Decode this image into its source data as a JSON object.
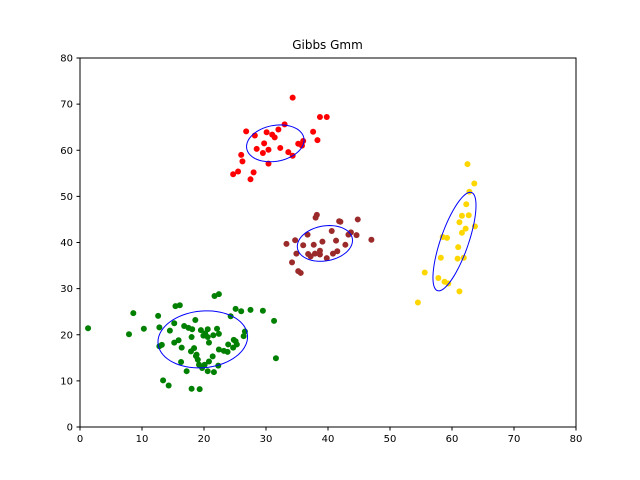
{
  "chart_data": {
    "type": "scatter",
    "title": "Gibbs Gmm",
    "xlabel": "",
    "ylabel": "",
    "xlim": [
      0,
      80
    ],
    "ylim": [
      0,
      80
    ],
    "xticks": [
      0,
      10,
      20,
      30,
      40,
      50,
      60,
      70,
      80
    ],
    "yticks": [
      0,
      10,
      20,
      30,
      40,
      50,
      60,
      70,
      80
    ],
    "grid": false,
    "ellipse_color": "#0000ff",
    "clusters": [
      {
        "color": "#ff0000",
        "ellipse": {
          "cx": 31.5,
          "cy": 61.5,
          "rx": 4.8,
          "ry": 3.8,
          "angle": 25
        },
        "points": [
          [
            34.3,
            71.4
          ],
          [
            28.2,
            63.2
          ],
          [
            33.0,
            65.6
          ],
          [
            26.8,
            64.1
          ],
          [
            38.7,
            67.2
          ],
          [
            39.8,
            67.2
          ],
          [
            37.6,
            64.0
          ],
          [
            36.0,
            62.0
          ],
          [
            38.3,
            62.2
          ],
          [
            35.8,
            61.0
          ],
          [
            31.4,
            62.8
          ],
          [
            30.1,
            63.9
          ],
          [
            31.0,
            63.4
          ],
          [
            28.5,
            60.3
          ],
          [
            29.5,
            59.4
          ],
          [
            30.4,
            60.1
          ],
          [
            32.3,
            60.5
          ],
          [
            30.4,
            57.1
          ],
          [
            26.0,
            59.0
          ],
          [
            26.2,
            57.6
          ],
          [
            24.7,
            54.8
          ],
          [
            25.5,
            55.4
          ],
          [
            27.5,
            53.7
          ],
          [
            28.0,
            55.2
          ],
          [
            33.6,
            59.6
          ],
          [
            34.3,
            58.8
          ],
          [
            35.2,
            61.4
          ],
          [
            32.0,
            64.5
          ],
          [
            29.7,
            61.5
          ]
        ]
      },
      {
        "color": "#9b2a2a",
        "ellipse": {
          "cx": 39.5,
          "cy": 39.8,
          "rx": 4.6,
          "ry": 3.7,
          "angle": 25
        },
        "points": [
          [
            38.2,
            46.0
          ],
          [
            38.0,
            45.4
          ],
          [
            40.6,
            42.5
          ],
          [
            42.0,
            44.5
          ],
          [
            41.8,
            44.6
          ],
          [
            44.8,
            45.0
          ],
          [
            43.3,
            41.7
          ],
          [
            43.7,
            42.2
          ],
          [
            44.6,
            41.6
          ],
          [
            47.0,
            40.6
          ],
          [
            42.8,
            39.5
          ],
          [
            41.3,
            40.4
          ],
          [
            39.1,
            40.2
          ],
          [
            38.7,
            38.2
          ],
          [
            37.7,
            39.5
          ],
          [
            36.7,
            41.7
          ],
          [
            36.0,
            39.4
          ],
          [
            34.7,
            40.5
          ],
          [
            33.3,
            39.7
          ],
          [
            34.9,
            37.6
          ],
          [
            34.2,
            35.7
          ],
          [
            35.2,
            33.8
          ],
          [
            35.6,
            33.4
          ],
          [
            37.9,
            37.6
          ],
          [
            37.2,
            37.0
          ],
          [
            39.8,
            36.6
          ],
          [
            40.8,
            37.6
          ],
          [
            41.5,
            38.1
          ],
          [
            38.7,
            37.4
          ],
          [
            36.8,
            37.5
          ]
        ]
      },
      {
        "color": "#ffd700",
        "ellipse": {
          "cx": 60.4,
          "cy": 40.2,
          "rx": 11.0,
          "ry": 2.3,
          "angle": 76
        },
        "points": [
          [
            62.5,
            57.0
          ],
          [
            62.8,
            51.0
          ],
          [
            63.6,
            52.8
          ],
          [
            62.3,
            48.3
          ],
          [
            61.6,
            45.8
          ],
          [
            61.2,
            44.4
          ],
          [
            62.7,
            45.9
          ],
          [
            62.2,
            43.0
          ],
          [
            61.6,
            42.1
          ],
          [
            63.7,
            43.5
          ],
          [
            58.5,
            41.2
          ],
          [
            59.2,
            41.0
          ],
          [
            61.0,
            39.0
          ],
          [
            60.9,
            36.5
          ],
          [
            58.2,
            36.7
          ],
          [
            57.8,
            32.3
          ],
          [
            58.8,
            31.5
          ],
          [
            59.4,
            31.1
          ],
          [
            61.2,
            29.4
          ],
          [
            55.6,
            33.5
          ],
          [
            54.5,
            27.0
          ],
          [
            61.9,
            36.7
          ]
        ]
      },
      {
        "color": "#008000",
        "ellipse": {
          "cx": 19.8,
          "cy": 19.0,
          "rx": 7.3,
          "ry": 6.1,
          "angle": 15
        },
        "points": [
          [
            1.3,
            21.4
          ],
          [
            7.9,
            20.1
          ],
          [
            8.6,
            24.7
          ],
          [
            10.3,
            21.3
          ],
          [
            12.6,
            24.1
          ],
          [
            12.8,
            21.6
          ],
          [
            12.8,
            17.5
          ],
          [
            13.2,
            17.8
          ],
          [
            14.5,
            20.9
          ],
          [
            15.2,
            22.5
          ],
          [
            15.4,
            26.2
          ],
          [
            16.1,
            26.4
          ],
          [
            15.9,
            18.8
          ],
          [
            15.2,
            18.3
          ],
          [
            16.4,
            17.2
          ],
          [
            16.8,
            21.9
          ],
          [
            17.5,
            21.5
          ],
          [
            18.1,
            21.2
          ],
          [
            18.6,
            23.2
          ],
          [
            18.0,
            19.5
          ],
          [
            18.4,
            17.1
          ],
          [
            18.8,
            15.7
          ],
          [
            19.5,
            21.0
          ],
          [
            19.9,
            19.8
          ],
          [
            20.2,
            20.3
          ],
          [
            20.6,
            21.2
          ],
          [
            20.6,
            19.5
          ],
          [
            21.5,
            19.9
          ],
          [
            22.1,
            21.3
          ],
          [
            22.4,
            20.2
          ],
          [
            21.7,
            28.4
          ],
          [
            22.4,
            28.8
          ],
          [
            24.3,
            24.0
          ],
          [
            25.1,
            25.6
          ],
          [
            26.0,
            25.1
          ],
          [
            27.5,
            25.4
          ],
          [
            29.5,
            25.2
          ],
          [
            31.3,
            23.0
          ],
          [
            31.6,
            14.9
          ],
          [
            26.6,
            20.7
          ],
          [
            26.4,
            19.7
          ],
          [
            25.3,
            17.9
          ],
          [
            24.8,
            18.9
          ],
          [
            24.7,
            17.2
          ],
          [
            23.2,
            16.5
          ],
          [
            22.4,
            16.8
          ],
          [
            21.4,
            15.3
          ],
          [
            20.8,
            14.2
          ],
          [
            20.6,
            12.1
          ],
          [
            19.7,
            12.8
          ],
          [
            19.2,
            13.5
          ],
          [
            19.0,
            14.6
          ],
          [
            18.7,
            15.4
          ],
          [
            17.9,
            16.4
          ],
          [
            16.3,
            14.1
          ],
          [
            17.2,
            12.1
          ],
          [
            14.3,
            9.0
          ],
          [
            13.4,
            10.1
          ],
          [
            18.0,
            8.3
          ],
          [
            19.3,
            8.2
          ],
          [
            20.1,
            13.5
          ],
          [
            21.6,
            11.9
          ],
          [
            22.3,
            13.3
          ],
          [
            23.8,
            16.3
          ],
          [
            23.9,
            17.9
          ],
          [
            25.1,
            18.6
          ],
          [
            20.8,
            18.3
          ]
        ]
      }
    ]
  }
}
